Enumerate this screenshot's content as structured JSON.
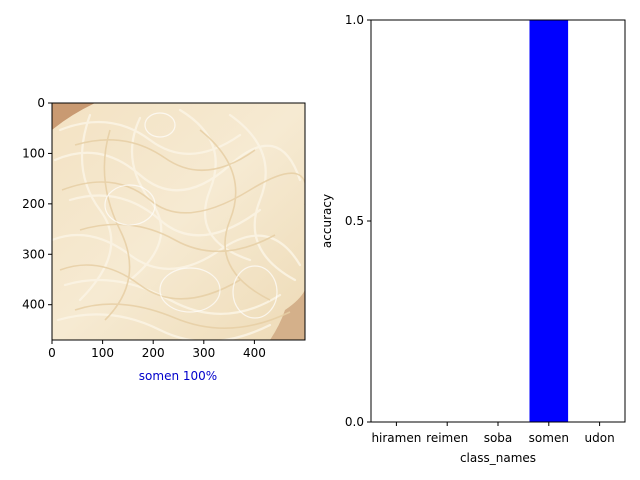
{
  "chart_data": [
    {
      "type": "image",
      "description_caption": "somen 100%",
      "caption_color": "#0000cc",
      "xlim": [
        0,
        500
      ],
      "ylim": [
        0,
        470
      ],
      "xticks": [
        0,
        100,
        200,
        300,
        400
      ],
      "yticks": [
        0,
        100,
        200,
        300,
        400
      ]
    },
    {
      "type": "bar",
      "categories": [
        "hiramen",
        "reimen",
        "soba",
        "somen",
        "udon"
      ],
      "values": [
        0,
        0,
        0,
        1.0,
        0
      ],
      "bar_color": "#0000ff",
      "xlabel": "class_names",
      "ylabel": "accuracy",
      "ylim": [
        0,
        1.0
      ],
      "yticks": [
        "0.0",
        "0.5",
        "1.0"
      ]
    }
  ]
}
